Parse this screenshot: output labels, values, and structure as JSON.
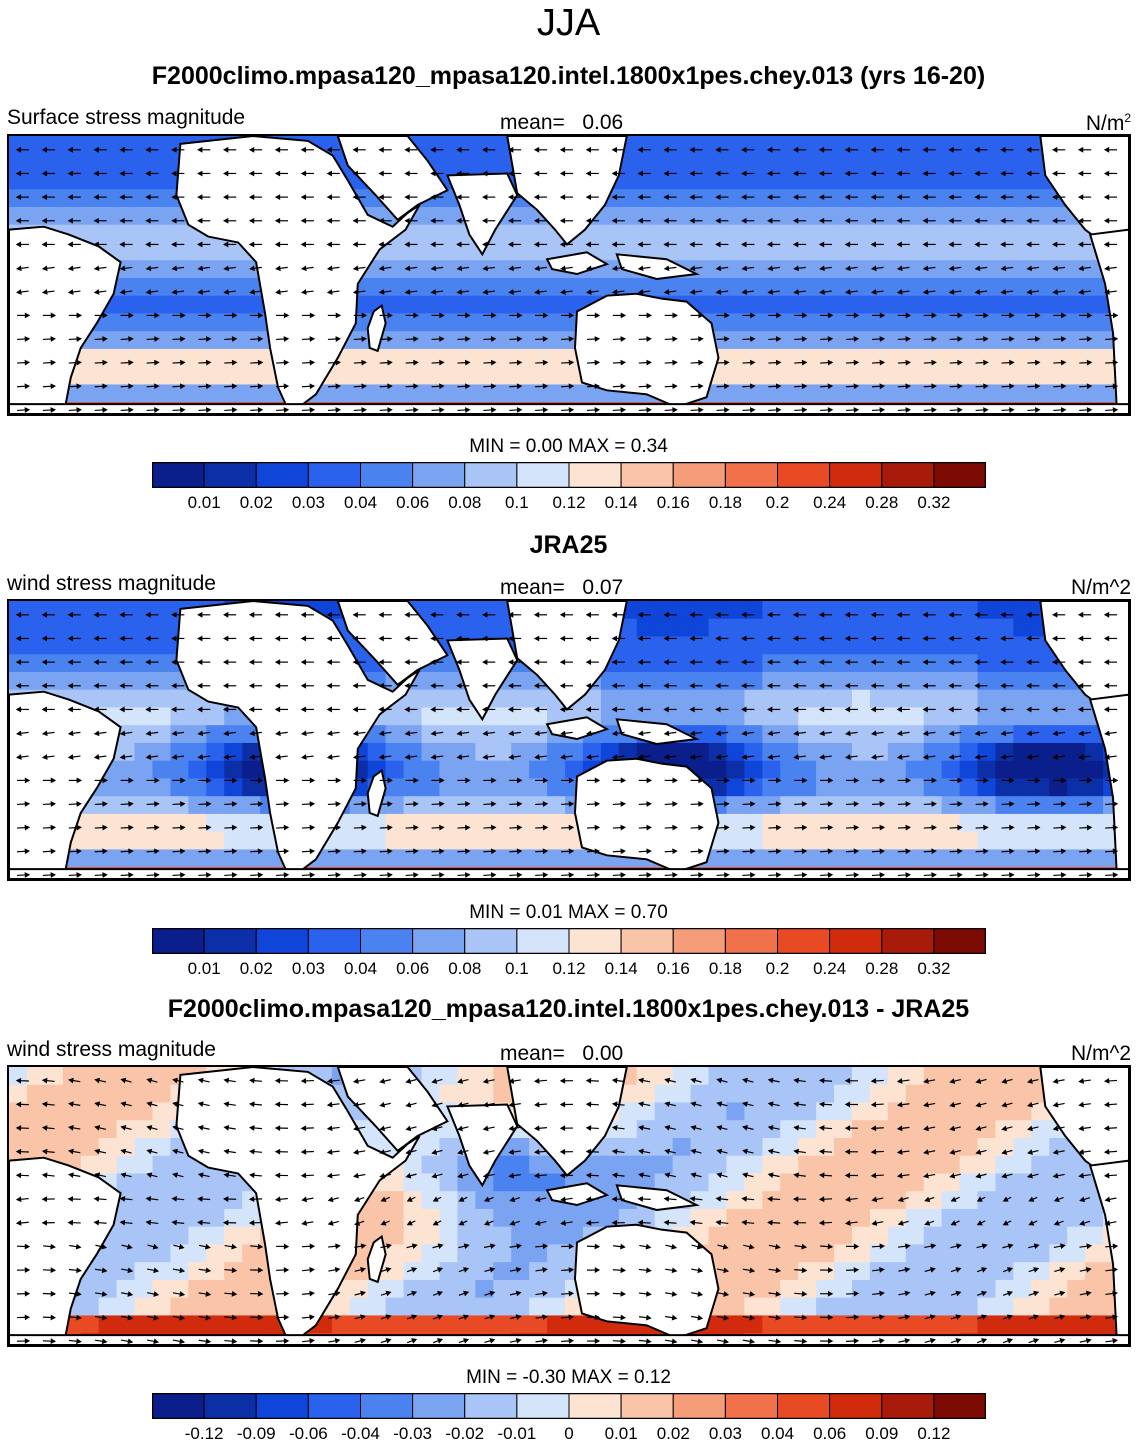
{
  "page_title": "JJA",
  "panels": [
    {
      "title": "F2000climo.mpasa120_mpasa120.intel.1800x1pes.chey.013 (yrs 16-20)",
      "left_string": "Surface stress magnitude",
      "mean_label": "mean=",
      "mean_value": "0.06",
      "units_base": "N/m",
      "units_sup": "2",
      "minmax": "MIN =   0.00 MAX =   0.34",
      "palette": "abs",
      "colorbar_ticks": [
        "0.01",
        "0.02",
        "0.03",
        "0.04",
        "0.06",
        "0.08",
        "0.1",
        "0.12",
        "0.14",
        "0.16",
        "0.18",
        "0.2",
        "0.24",
        "0.28",
        "0.32"
      ]
    },
    {
      "title": "JRA25",
      "left_string": "wind stress magnitude",
      "mean_label": "mean=",
      "mean_value": "0.07",
      "units_base": "N/m^2",
      "units_sup": "",
      "minmax": "MIN =   0.01 MAX =   0.70",
      "palette": "abs",
      "colorbar_ticks": [
        "0.01",
        "0.02",
        "0.03",
        "0.04",
        "0.06",
        "0.08",
        "0.1",
        "0.12",
        "0.14",
        "0.16",
        "0.18",
        "0.2",
        "0.24",
        "0.28",
        "0.32"
      ]
    },
    {
      "title": "F2000climo.mpasa120_mpasa120.intel.1800x1pes.chey.013 - JRA25",
      "left_string": "wind stress magnitude",
      "mean_label": "mean=",
      "mean_value": "0.00",
      "units_base": "N/m^2",
      "units_sup": "",
      "minmax": "MIN =  -0.30 MAX =   0.12",
      "palette": "diff",
      "colorbar_ticks": [
        "-0.12",
        "-0.09",
        "-0.06",
        "-0.04",
        "-0.03",
        "-0.02",
        "-0.01",
        "0",
        "0.01",
        "0.02",
        "0.03",
        "0.04",
        "0.06",
        "0.09",
        "0.12"
      ]
    }
  ],
  "colors": {
    "abs": [
      "#0a1e8c",
      "#0c2fa8",
      "#0f45d8",
      "#2a62ee",
      "#4a82f0",
      "#7aa4f2",
      "#a9c4f6",
      "#d4e4fb",
      "#fde3d2",
      "#fac4a8",
      "#f59c78",
      "#f0714a",
      "#e84a24",
      "#d12b0e",
      "#a81a0a",
      "#7c0b04"
    ],
    "diff": [
      "#0a1e8c",
      "#0c2fa8",
      "#0f45d8",
      "#2a62ee",
      "#4a82f0",
      "#7aa4f2",
      "#a9c4f6",
      "#d4e4fb",
      "#fde3d2",
      "#fac4a8",
      "#f59c78",
      "#f0714a",
      "#e84a24",
      "#d12b0e",
      "#a81a0a",
      "#7c0b04"
    ],
    "land": "#ffffff",
    "coast": "#000000"
  },
  "chart_data": [
    {
      "type": "heatmap",
      "title": "F2000climo.mpasa120_mpasa120.intel.1800x1pes.chey.013 (yrs 16-20)",
      "variable": "Surface stress magnitude",
      "units": "N/m2",
      "mean": 0.06,
      "min": 0.0,
      "max": 0.34,
      "levels": [
        0.01,
        0.02,
        0.03,
        0.04,
        0.06,
        0.08,
        0.1,
        0.12,
        0.14,
        0.16,
        0.18,
        0.2,
        0.24,
        0.28,
        0.32
      ],
      "extent_lon": [
        0,
        360
      ],
      "extent_lat": [
        -60,
        60
      ],
      "vectors": "wind stress direction arrows"
    },
    {
      "type": "heatmap",
      "title": "JRA25",
      "variable": "wind stress magnitude",
      "units": "N/m^2",
      "mean": 0.07,
      "min": 0.01,
      "max": 0.7,
      "levels": [
        0.01,
        0.02,
        0.03,
        0.04,
        0.06,
        0.08,
        0.1,
        0.12,
        0.14,
        0.16,
        0.18,
        0.2,
        0.24,
        0.28,
        0.32
      ],
      "extent_lon": [
        0,
        360
      ],
      "extent_lat": [
        -60,
        60
      ],
      "vectors": "wind stress direction arrows"
    },
    {
      "type": "heatmap",
      "title": "F2000climo.mpasa120_mpasa120.intel.1800x1pes.chey.013 - JRA25",
      "variable": "wind stress magnitude",
      "units": "N/m^2",
      "mean": 0.0,
      "min": -0.3,
      "max": 0.12,
      "levels": [
        -0.12,
        -0.09,
        -0.06,
        -0.04,
        -0.03,
        -0.02,
        -0.01,
        0,
        0.01,
        0.02,
        0.03,
        0.04,
        0.06,
        0.09,
        0.12
      ],
      "extent_lon": [
        0,
        360
      ],
      "extent_lat": [
        -60,
        60
      ],
      "vectors": "wind stress difference arrows"
    }
  ]
}
